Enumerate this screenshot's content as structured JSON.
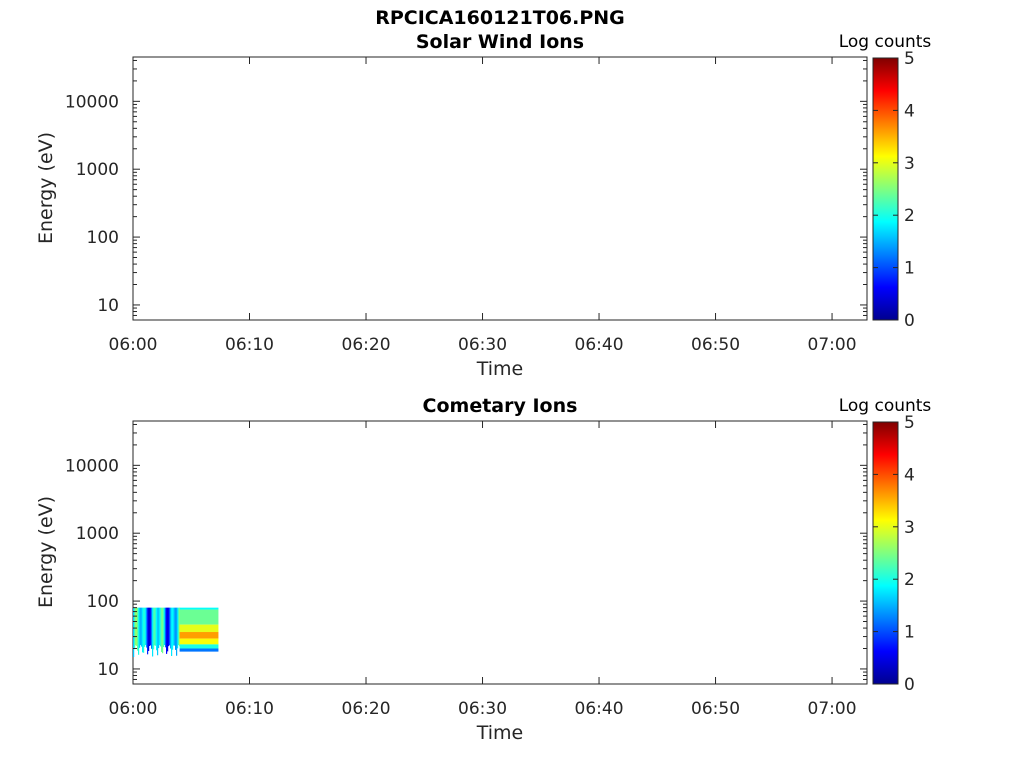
{
  "figure": {
    "title": "RPCICA160121T06.PNG"
  },
  "chart_data": [
    {
      "type": "heatmap",
      "title": "Solar Wind Ions",
      "xlabel": "Time",
      "ylabel": "Energy (eV)",
      "yscale": "log",
      "xlim": [
        "06:00",
        "07:03"
      ],
      "ylim": [
        6,
        45000
      ],
      "xticks": [
        "06:00",
        "06:10",
        "06:20",
        "06:30",
        "06:40",
        "06:50",
        "07:00"
      ],
      "yticks": [
        "10",
        "100",
        "1000",
        "10000"
      ],
      "colorbar": {
        "label": "Log counts",
        "min": 0,
        "max": 5,
        "ticks": [
          "0",
          "1",
          "2",
          "3",
          "4",
          "5"
        ],
        "colormap": "jet"
      },
      "data": []
    },
    {
      "type": "heatmap",
      "title": "Cometary Ions",
      "xlabel": "Time",
      "ylabel": "Energy (eV)",
      "yscale": "log",
      "xlim": [
        "06:00",
        "07:03"
      ],
      "ylim": [
        6,
        45000
      ],
      "xticks": [
        "06:00",
        "06:10",
        "06:20",
        "06:30",
        "06:40",
        "06:50",
        "07:00"
      ],
      "yticks": [
        "10",
        "100",
        "1000",
        "10000"
      ],
      "colorbar": {
        "label": "Log counts",
        "min": 0,
        "max": 5,
        "ticks": [
          "0",
          "1",
          "2",
          "3",
          "4",
          "5"
        ],
        "colormap": "jet"
      },
      "data": [
        {
          "t_start": "06:00:00",
          "t_end": "06:04:00",
          "e_low": 15,
          "e_high": 80,
          "log_counts": 1.6,
          "variability": "patchy"
        },
        {
          "t_start": "06:04:00",
          "t_end": "06:07:20",
          "e_low": 80,
          "e_high": 75,
          "log_counts": 1.9
        },
        {
          "t_start": "06:04:00",
          "t_end": "06:07:20",
          "e_low": 75,
          "e_high": 45,
          "log_counts": 2.4
        },
        {
          "t_start": "06:04:00",
          "t_end": "06:07:20",
          "e_low": 45,
          "e_high": 35,
          "log_counts": 3.0
        },
        {
          "t_start": "06:04:00",
          "t_end": "06:07:20",
          "e_low": 35,
          "e_high": 28,
          "log_counts": 3.6
        },
        {
          "t_start": "06:04:00",
          "t_end": "06:07:20",
          "e_low": 28,
          "e_high": 23,
          "log_counts": 3.1
        },
        {
          "t_start": "06:04:00",
          "t_end": "06:07:20",
          "e_low": 23,
          "e_high": 20,
          "log_counts": 2.0
        },
        {
          "t_start": "06:04:00",
          "t_end": "06:07:20",
          "e_low": 20,
          "e_high": 18,
          "log_counts": 1.2
        }
      ]
    }
  ]
}
